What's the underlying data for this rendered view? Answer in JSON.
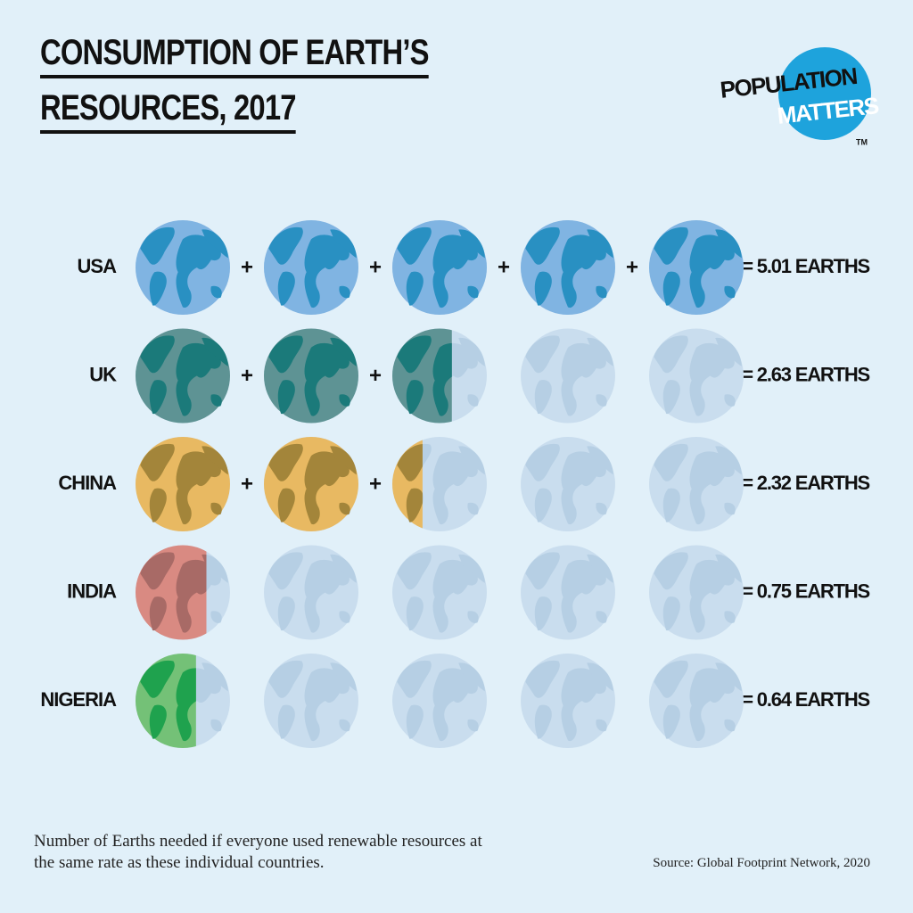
{
  "chart_data": {
    "type": "pictogram",
    "title": "CONSUMPTION OF EARTH’S RESOURCES, 2017",
    "logo": [
      "POPULATION",
      "MATTERS"
    ],
    "logo_mark": "TM",
    "categories": [
      "USA",
      "UK",
      "CHINA",
      "INDIA",
      "NIGERIA"
    ],
    "values": [
      5.01,
      2.63,
      2.32,
      0.75,
      0.64
    ],
    "value_labels": [
      "= 5.01 EARTHS",
      "= 2.63 EARTHS",
      "= 2.32 EARTHS",
      "= 0.75 EARTHS",
      "= 0.64 EARTHS"
    ],
    "colors": [
      "#80b4e2",
      "#5e9394",
      "#e8b962",
      "#d98a82",
      "#74c177"
    ],
    "land_colors": [
      "#2990c2",
      "#1b7a7a",
      "#a3853a",
      "#a86a66",
      "#1fa24e"
    ],
    "empty_color": "#c9ddee",
    "max_units": 5,
    "footnote": "Number of Earths needed if everyone used renewable resources at the same rate as these individual countries.",
    "source": "Source: Global Footprint Network, 2020"
  }
}
